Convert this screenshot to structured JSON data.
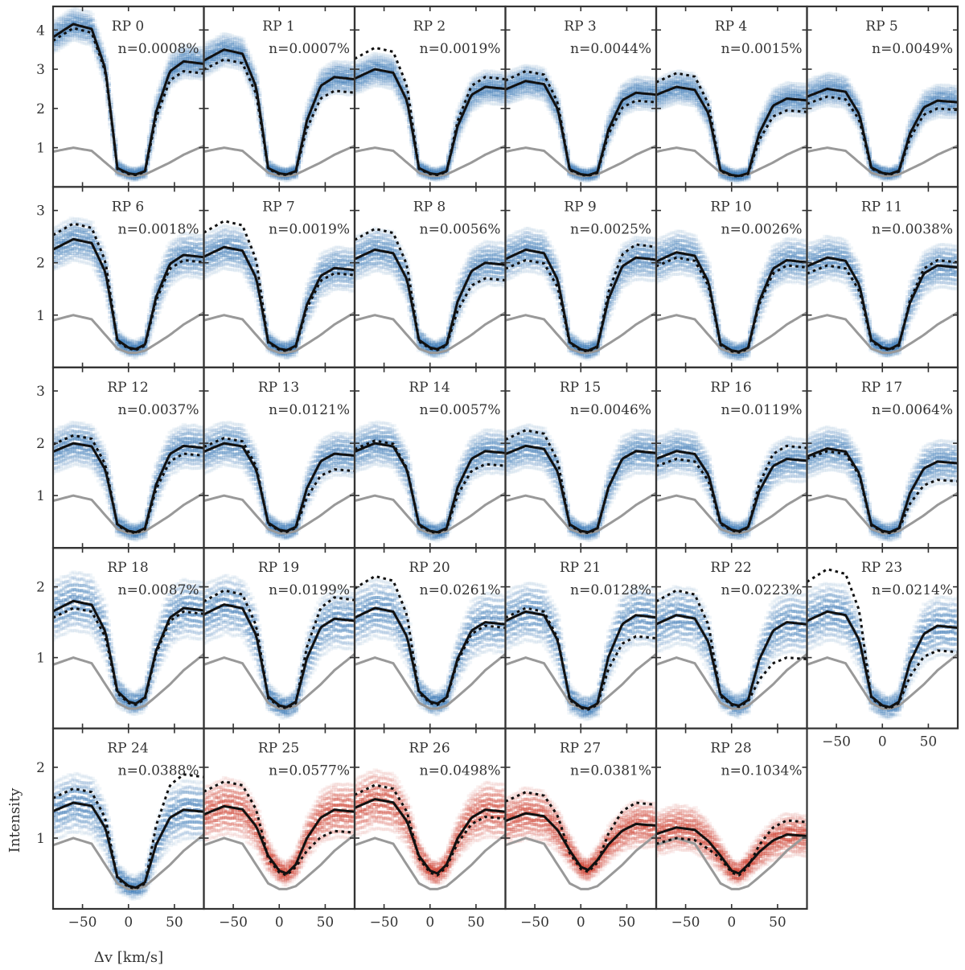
{
  "chart_data": {
    "type": "line",
    "xlabel": "Δv [km/s]",
    "ylabel": "Intensity",
    "xlim": [
      -82,
      82
    ],
    "xticks": [
      -50,
      0,
      50
    ],
    "colors": {
      "blue": "#3b78b5",
      "red": "#cc3a2a",
      "mean": "#111111",
      "reference": "#999999"
    },
    "rows": [
      {
        "ylim": [
          0.0,
          4.6
        ],
        "yticks": [
          1,
          2,
          3,
          4
        ]
      },
      {
        "ylim": [
          0.0,
          3.45
        ],
        "yticks": [
          1,
          2,
          3
        ]
      },
      {
        "ylim": [
          0.0,
          3.45
        ],
        "yticks": [
          1,
          2,
          3
        ]
      },
      {
        "ylim": [
          0.0,
          2.55
        ],
        "yticks": [
          1,
          2
        ]
      },
      {
        "ylim": [
          0.0,
          2.55
        ],
        "yticks": [
          1,
          2
        ]
      }
    ],
    "reference_profile": {
      "x": [
        -82,
        -60,
        -40,
        -25,
        -12,
        0,
        8,
        18,
        30,
        45,
        60,
        82
      ],
      "y": [
        0.9,
        1.0,
        0.92,
        0.62,
        0.36,
        0.28,
        0.28,
        0.32,
        0.45,
        0.62,
        0.82,
        1.05
      ]
    },
    "panels": [
      {
        "label": "RP 0",
        "n": "n=0.0008%",
        "palette": "blue",
        "peak_left": 4.15,
        "peak_right": 3.2,
        "dot_left": 4.05,
        "dot_right": 2.95,
        "min": 0.32
      },
      {
        "label": "RP 1",
        "n": "n=0.0007%",
        "palette": "blue",
        "peak_left": 3.5,
        "peak_right": 2.8,
        "dot_left": 3.25,
        "dot_right": 2.45,
        "min": 0.32
      },
      {
        "label": "RP 2",
        "n": "n=0.0019%",
        "palette": "blue",
        "peak_left": 3.0,
        "peak_right": 2.55,
        "dot_left": 3.55,
        "dot_right": 2.8,
        "min": 0.32
      },
      {
        "label": "RP 3",
        "n": "n=0.0044%",
        "palette": "blue",
        "peak_left": 2.7,
        "peak_right": 2.4,
        "dot_left": 2.95,
        "dot_right": 2.2,
        "min": 0.3
      },
      {
        "label": "RP 4",
        "n": "n=0.0015%",
        "palette": "blue",
        "peak_left": 2.55,
        "peak_right": 2.25,
        "dot_left": 2.9,
        "dot_right": 1.95,
        "min": 0.28
      },
      {
        "label": "RP 5",
        "n": "n=0.0049%",
        "palette": "blue",
        "peak_left": 2.5,
        "peak_right": 2.2,
        "dot_left": 2.3,
        "dot_right": 2.0,
        "min": 0.33
      },
      {
        "label": "RP 6",
        "n": "n=0.0018%",
        "palette": "blue",
        "peak_left": 2.45,
        "peak_right": 2.15,
        "dot_left": 2.75,
        "dot_right": 2.05,
        "min": 0.35
      },
      {
        "label": "RP 7",
        "n": "n=0.0019%",
        "palette": "blue",
        "peak_left": 2.3,
        "peak_right": 1.9,
        "dot_left": 2.8,
        "dot_right": 1.8,
        "min": 0.33
      },
      {
        "label": "RP 8",
        "n": "n=0.0056%",
        "palette": "blue",
        "peak_left": 2.25,
        "peak_right": 2.0,
        "dot_left": 2.65,
        "dot_right": 1.7,
        "min": 0.35
      },
      {
        "label": "RP 9",
        "n": "n=0.0025%",
        "palette": "blue",
        "peak_left": 2.25,
        "peak_right": 2.1,
        "dot_left": 2.05,
        "dot_right": 2.35,
        "min": 0.32
      },
      {
        "label": "RP 10",
        "n": "n=0.0026%",
        "palette": "blue",
        "peak_left": 2.2,
        "peak_right": 2.05,
        "dot_left": 2.1,
        "dot_right": 1.95,
        "min": 0.3
      },
      {
        "label": "RP 11",
        "n": "n=0.0038%",
        "palette": "blue",
        "peak_left": 2.1,
        "peak_right": 1.95,
        "dot_left": 1.95,
        "dot_right": 2.05,
        "min": 0.35
      },
      {
        "label": "RP 12",
        "n": "n=0.0037%",
        "palette": "blue",
        "peak_left": 2.0,
        "peak_right": 1.95,
        "dot_left": 2.15,
        "dot_right": 1.8,
        "min": 0.3
      },
      {
        "label": "RP 13",
        "n": "n=0.0121%",
        "palette": "blue",
        "peak_left": 2.0,
        "peak_right": 1.8,
        "dot_left": 2.1,
        "dot_right": 1.5,
        "min": 0.32
      },
      {
        "label": "RP 14",
        "n": "n=0.0057%",
        "palette": "blue",
        "peak_left": 2.0,
        "peak_right": 1.85,
        "dot_left": 2.05,
        "dot_right": 1.6,
        "min": 0.3
      },
      {
        "label": "RP 15",
        "n": "n=0.0046%",
        "palette": "blue",
        "peak_left": 1.95,
        "peak_right": 1.85,
        "dot_left": 2.25,
        "dot_right": 1.85,
        "min": 0.3
      },
      {
        "label": "RP 16",
        "n": "n=0.0119%",
        "palette": "blue",
        "peak_left": 1.85,
        "peak_right": 1.7,
        "dot_left": 1.7,
        "dot_right": 1.95,
        "min": 0.32
      },
      {
        "label": "RP 17",
        "n": "n=0.0064%",
        "palette": "blue",
        "peak_left": 1.9,
        "peak_right": 1.65,
        "dot_left": 1.85,
        "dot_right": 1.3,
        "min": 0.3
      },
      {
        "label": "RP 18",
        "n": "n=0.0087%",
        "palette": "blue",
        "peak_left": 1.8,
        "peak_right": 1.7,
        "dot_left": 1.7,
        "dot_right": 1.65,
        "min": 0.35
      },
      {
        "label": "RP 19",
        "n": "n=0.0199%",
        "palette": "blue",
        "peak_left": 1.75,
        "peak_right": 1.55,
        "dot_left": 1.95,
        "dot_right": 1.85,
        "min": 0.3
      },
      {
        "label": "RP 20",
        "n": "n=0.0261%",
        "palette": "blue",
        "peak_left": 1.7,
        "peak_right": 1.5,
        "dot_left": 2.15,
        "dot_right": 1.45,
        "min": 0.35
      },
      {
        "label": "RP 21",
        "n": "n=0.0128%",
        "palette": "blue",
        "peak_left": 1.65,
        "peak_right": 1.6,
        "dot_left": 1.7,
        "dot_right": 1.3,
        "min": 0.28
      },
      {
        "label": "RP 22",
        "n": "n=0.0223%",
        "palette": "blue",
        "peak_left": 1.6,
        "peak_right": 1.5,
        "dot_left": 1.95,
        "dot_right": 1.0,
        "min": 0.32
      },
      {
        "label": "RP 23",
        "n": "n=0.0214%",
        "palette": "blue",
        "peak_left": 1.65,
        "peak_right": 1.45,
        "dot_left": 2.25,
        "dot_right": 1.1,
        "min": 0.3
      },
      {
        "label": "RP 24",
        "n": "n=0.0388%",
        "palette": "blue",
        "peak_left": 1.5,
        "peak_right": 1.4,
        "dot_left": 1.7,
        "dot_right": 1.9,
        "min": 0.3
      },
      {
        "label": "RP 25",
        "n": "n=0.0577%",
        "palette": "red",
        "peak_left": 1.45,
        "peak_right": 1.4,
        "dot_left": 1.8,
        "dot_right": 1.1,
        "min": 0.5
      },
      {
        "label": "RP 26",
        "n": "n=0.0498%",
        "palette": "red",
        "peak_left": 1.55,
        "peak_right": 1.4,
        "dot_left": 1.75,
        "dot_right": 1.3,
        "min": 0.5
      },
      {
        "label": "RP 27",
        "n": "n=0.0381%",
        "palette": "red",
        "peak_left": 1.35,
        "peak_right": 1.2,
        "dot_left": 1.65,
        "dot_right": 1.5,
        "min": 0.55
      },
      {
        "label": "RP 28",
        "n": "n=0.1034%",
        "palette": "red",
        "peak_left": 1.15,
        "peak_right": 1.05,
        "dot_left": 1.0,
        "dot_right": 1.25,
        "min": 0.5
      }
    ]
  }
}
